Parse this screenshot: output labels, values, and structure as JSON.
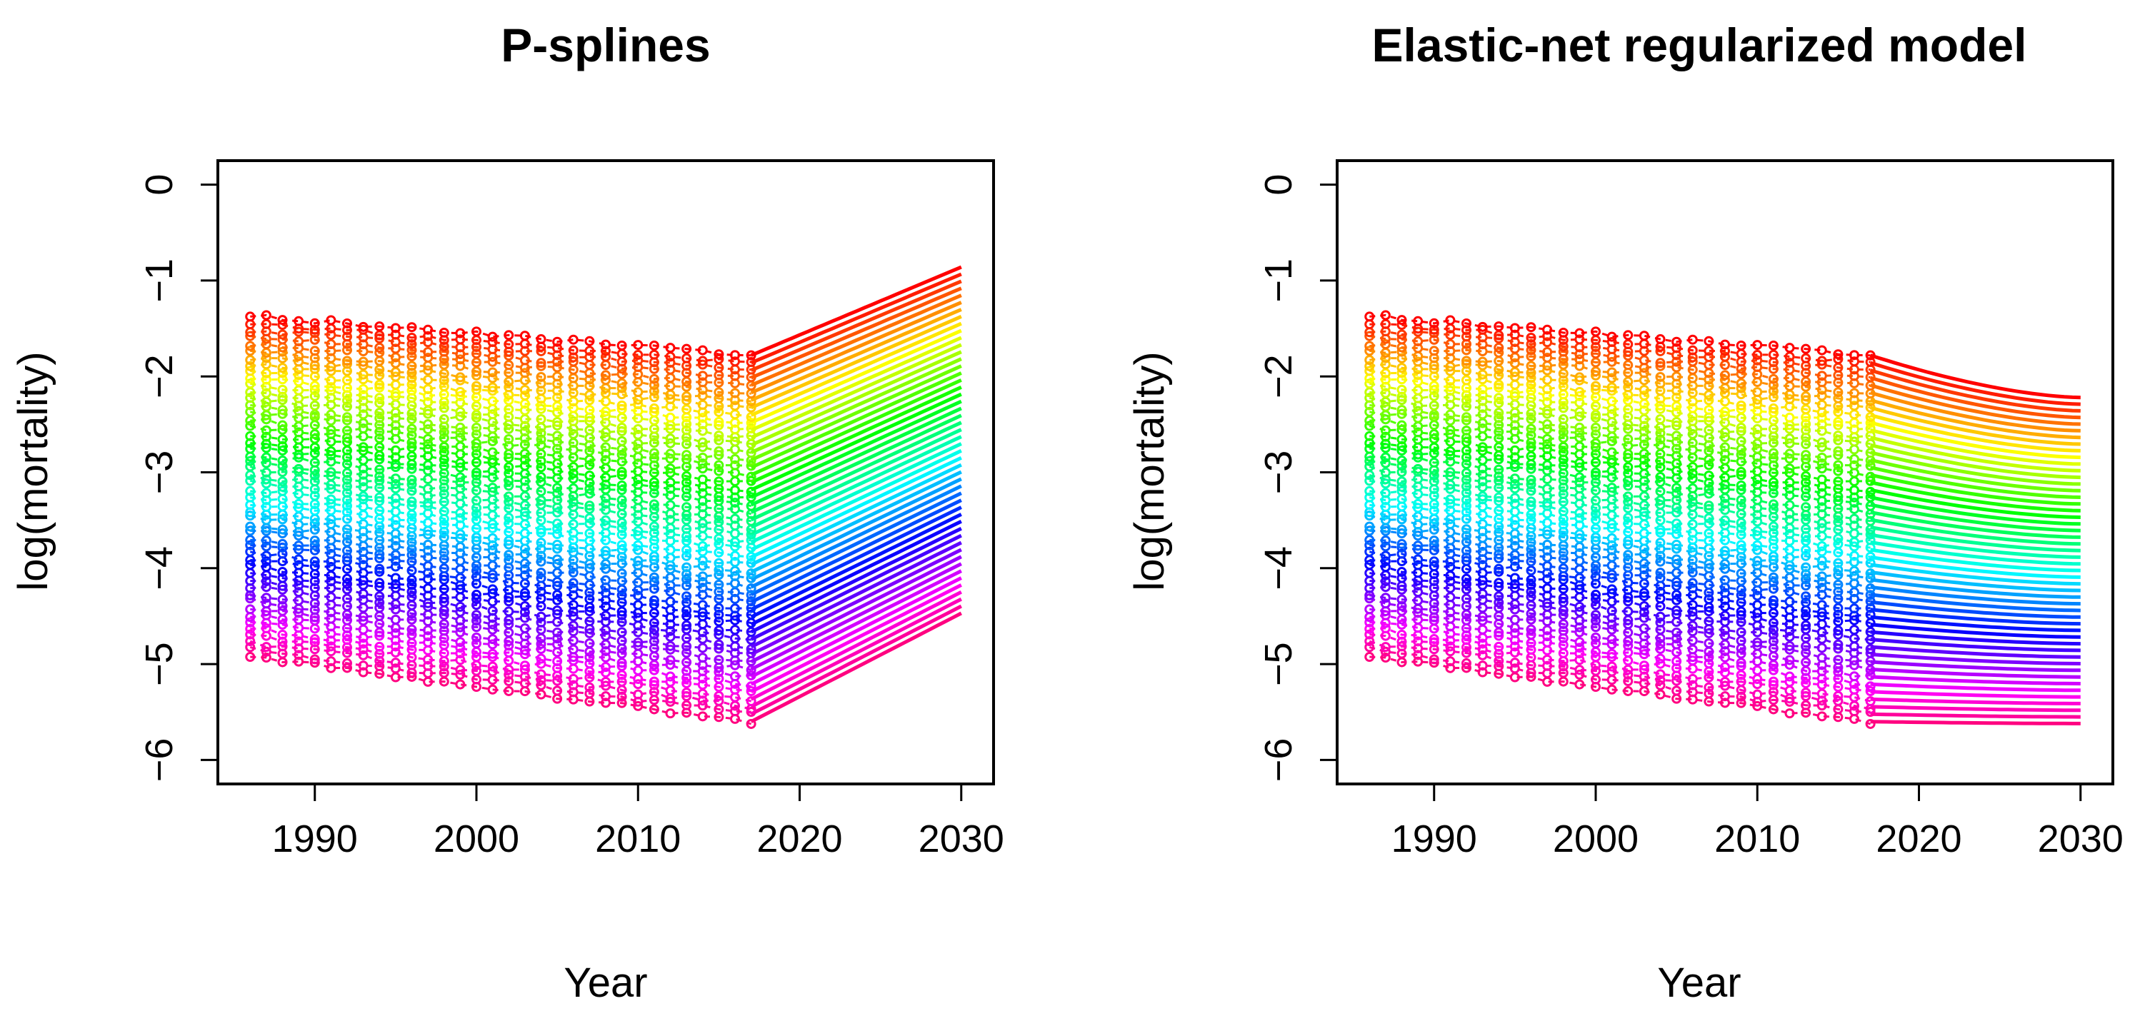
{
  "chart_data": [
    {
      "type": "line",
      "title": "P-splines",
      "xlabel": "Year",
      "ylabel": "log(mortality)",
      "xlim": [
        1984,
        2032
      ],
      "ylim": [
        -6.25,
        0.25
      ],
      "x_ticks": [
        1990,
        2000,
        2010,
        2020,
        2030
      ],
      "x_tick_labels": [
        "1990",
        "2000",
        "2010",
        "2020",
        "2030"
      ],
      "y_ticks": [
        0,
        -1,
        -2,
        -3,
        -4,
        -5,
        -6
      ],
      "y_tick_labels": [
        "0",
        "−1",
        "−2",
        "−3",
        "−4",
        "−5",
        "−6"
      ],
      "observed_years": [
        1986,
        2017
      ],
      "forecast_years": [
        2017,
        2030
      ],
      "n_series": 50,
      "series_description": "one curve per age, colored by a rainbow palette from red (lowest) through yellow, green, cyan, blue, magenta back to red (highest)",
      "lowest_curve": {
        "y_1986": -4.92,
        "y_2017": -5.6,
        "y_2030": -4.47
      },
      "highest_curve": {
        "y_1986": -1.37,
        "y_2017": -1.78,
        "y_2030": -0.86
      },
      "forecast_trend": "increasing"
    },
    {
      "type": "line",
      "title": "Elastic-net regularized model",
      "xlabel": "Year",
      "ylabel": "log(mortality)",
      "xlim": [
        1984,
        2032
      ],
      "ylim": [
        -6.25,
        0.25
      ],
      "x_ticks": [
        1990,
        2000,
        2010,
        2020,
        2030
      ],
      "x_tick_labels": [
        "1990",
        "2000",
        "2010",
        "2020",
        "2030"
      ],
      "y_ticks": [
        0,
        -1,
        -2,
        -3,
        -4,
        -5,
        -6
      ],
      "y_tick_labels": [
        "0",
        "−1",
        "−2",
        "−3",
        "−4",
        "−5",
        "−6"
      ],
      "observed_years": [
        1986,
        2017
      ],
      "forecast_years": [
        2017,
        2030
      ],
      "n_series": 50,
      "series_description": "one curve per age, colored by a rainbow palette from red (lowest) through yellow, green, cyan, blue, magenta back to red (highest)",
      "lowest_curve": {
        "y_1986": -4.92,
        "y_2017": -5.6,
        "y_2030": -5.62
      },
      "highest_curve": {
        "y_1986": -1.37,
        "y_2017": -1.78,
        "y_2030": -2.22
      },
      "forecast_trend": "decreasing"
    }
  ]
}
